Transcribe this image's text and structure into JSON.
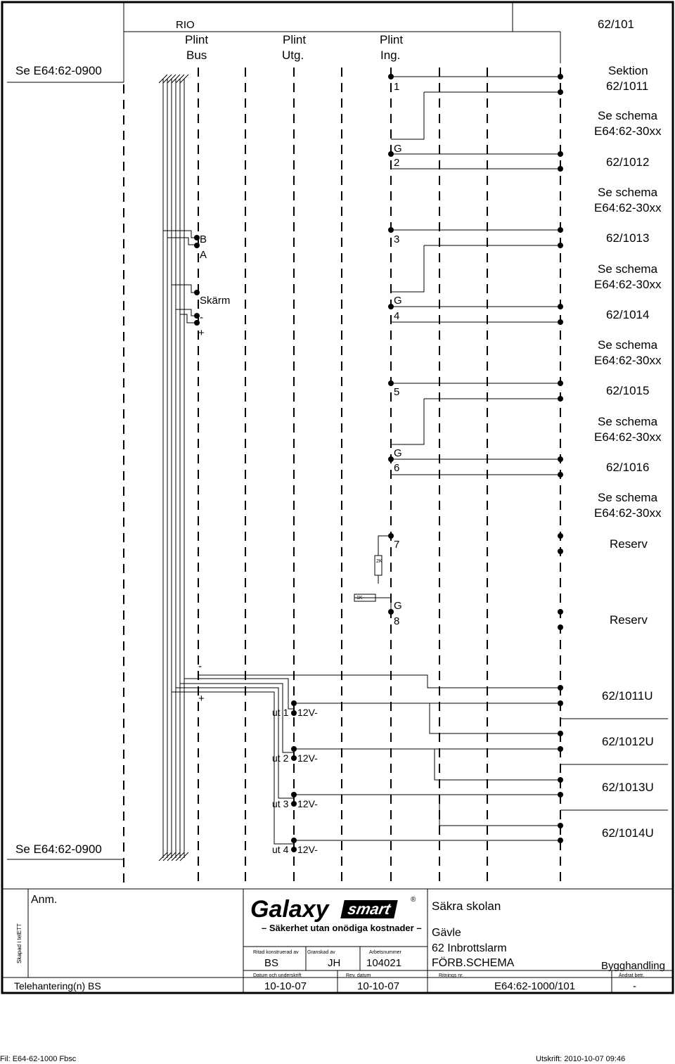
{
  "header": {
    "left_ref": "Se E64:62-0900",
    "rio_label": "RIO",
    "columns": [
      {
        "line1": "Plint",
        "line2": "Bus"
      },
      {
        "line1": "Plint",
        "line2": "Utg."
      },
      {
        "line1": "Plint",
        "line2": "Ing."
      }
    ],
    "sheet_ref": "62/101"
  },
  "sections": [
    {
      "id": "62/1011",
      "pre": "Sektion"
    },
    {
      "id": "62/1012",
      "pre": "Se schema",
      "pre2": "E64:62-30xx"
    },
    {
      "id": "62/1013",
      "pre": "Se schema",
      "pre2": "E64:62-30xx"
    },
    {
      "id": "62/1014",
      "pre": "Se schema",
      "pre2": "E64:62-30xx"
    },
    {
      "id": "62/1015",
      "pre": "Se schema",
      "pre2": "E64:62-30xx"
    },
    {
      "id": "62/1016",
      "pre": "Se schema",
      "pre2": "E64:62-30xx"
    }
  ],
  "after_1016": {
    "l1": "Se schema",
    "l2": "E64:62-30xx"
  },
  "reserves": [
    "Reserv",
    "Reserv"
  ],
  "inputs": [
    "1",
    "G",
    "2",
    "3",
    "G",
    "4",
    "5",
    "G",
    "6",
    "7",
    "G",
    "8"
  ],
  "bus_terms": {
    "b": "B",
    "a": "A",
    "skarm": "Skärm",
    "minus": "-",
    "plus": "+"
  },
  "resistors": {
    "r1": "2K",
    "r2": "1K"
  },
  "power": {
    "minus": "-",
    "plus": "+"
  },
  "outputs": [
    {
      "label": "ut 1",
      "volt": "12V-",
      "ref": "62/1011U"
    },
    {
      "label": "ut 2",
      "volt": "12V-",
      "ref": "62/1012U"
    },
    {
      "label": "ut 3",
      "volt": "12V-",
      "ref": "62/1013U"
    },
    {
      "label": "ut 4",
      "volt": "12V-",
      "ref": "62/1014U"
    }
  ],
  "bottom_ref": "Se E64:62-0900",
  "title_block": {
    "anm": "Anm.",
    "side": "Skapad i telETT",
    "logo_word": "Galaxy",
    "logo_smart": "smart",
    "logo_reg": "®",
    "tagline": "– Säkerhet utan onödiga kostnader –",
    "project": "Säkra skolan",
    "city": "Gävle",
    "system": "62 Inbrottslarm",
    "doc_type": "FÖRB.SCHEMA",
    "ritad_label": "Ritad konstruerad av",
    "granskad_label": "Granskad av",
    "arbets_label": "Arbetsnummer",
    "ritad_value": "BS",
    "granskad_value": "JH",
    "arbets_value": "104021",
    "handling": "Bygghandling",
    "datum_label": "Datum och underskrift",
    "rev_label": "Rev. datum",
    "ritnings_label": "Ritnings nr.",
    "andrat_label": "Ändrat betr.",
    "telehantering": "Telehantering(n) BS",
    "datum_value": "10-10-07",
    "rev_value": "10-10-07",
    "ritnings_value": "E64:62-1000/101",
    "andrat_value": "-"
  },
  "footer": {
    "file": "Fil: E64-62-1000 Fbsc",
    "printed": "Utskrift: 2010-10-07  09:46"
  }
}
